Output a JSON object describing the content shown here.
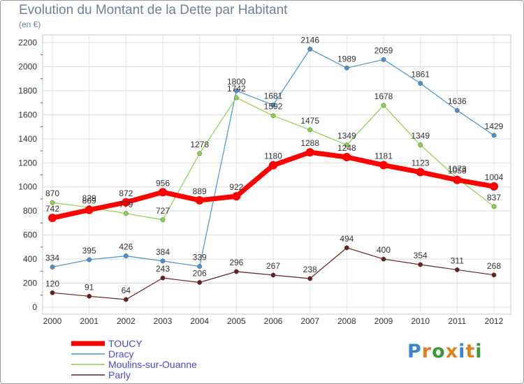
{
  "title": "Evolution du Montant de la Dette par Habitant",
  "unit": "(en €)",
  "logo": {
    "text": "Proxiti",
    "letters": [
      {
        "ch": "P",
        "color": "#3a86c8"
      },
      {
        "ch": "r",
        "color": "#e0801e"
      },
      {
        "ch": "o",
        "color": "#3a9a3a"
      },
      {
        "ch": "x",
        "color": "#e0801e"
      },
      {
        "ch": "i",
        "color": "#3a86c8"
      },
      {
        "ch": "t",
        "color": "#e0801e"
      },
      {
        "ch": "i",
        "color": "#3a9a3a"
      }
    ]
  },
  "chart_data": {
    "type": "line",
    "categories": [
      "2000",
      "2001",
      "2002",
      "2003",
      "2004",
      "2005",
      "2006",
      "2007",
      "2008",
      "2009",
      "2010",
      "2011",
      "2012"
    ],
    "ylim": [
      0,
      2200
    ],
    "yticks": [
      0,
      200,
      400,
      600,
      800,
      1000,
      1200,
      1400,
      1600,
      1800,
      2000,
      2200
    ],
    "grid": true,
    "legend_placement": "bottom-left",
    "series": [
      {
        "name": "TOUCY",
        "color": "#ff0000",
        "values": [
          742,
          809,
          872,
          956,
          889,
          922,
          1180,
          1288,
          1248,
          1181,
          1123,
          1058,
          1004
        ]
      },
      {
        "name": "Dracy",
        "color": "#4a90d0",
        "values": [
          334,
          395,
          426,
          384,
          339,
          1800,
          1681,
          2146,
          1989,
          2059,
          1861,
          1636,
          1429
        ]
      },
      {
        "name": "Moulins-sur-Ouanne",
        "color": "#8ad24a",
        "values": [
          870,
          829,
          779,
          727,
          1278,
          1742,
          1592,
          1475,
          1349,
          1678,
          1349,
          1073,
          837
        ]
      },
      {
        "name": "Parly",
        "color": "#6b1e1e",
        "values": [
          120,
          91,
          64,
          243,
          206,
          296,
          267,
          238,
          494,
          400,
          354,
          311,
          268
        ]
      }
    ]
  }
}
